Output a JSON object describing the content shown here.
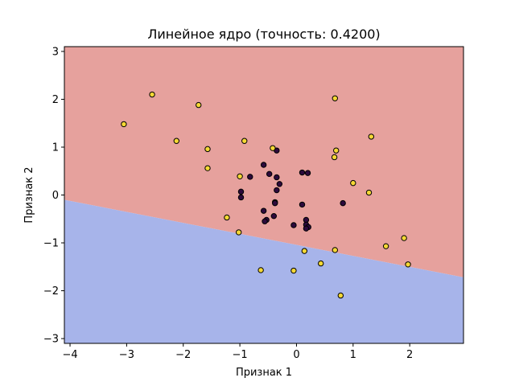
{
  "chart_data": {
    "type": "scatter",
    "title": "Линейное ядро (точность: 0.4200)",
    "xlabel": "Признак 1",
    "ylabel": "Признак 2",
    "xlim": [
      -4.1,
      2.95
    ],
    "ylim": [
      -3.1,
      3.1
    ],
    "x_ticks": [
      -4,
      -3,
      -2,
      -1,
      0,
      1,
      2
    ],
    "y_ticks": [
      -3,
      -2,
      -1,
      0,
      1,
      2,
      3
    ],
    "x_tick_labels": [
      "−4",
      "−3",
      "−2",
      "−1",
      "0",
      "1",
      "2"
    ],
    "y_tick_labels": [
      "−3",
      "−2",
      "−1",
      "0",
      "1",
      "2",
      "3"
    ],
    "grid": false,
    "decision_boundary": {
      "type": "line",
      "x": [
        -4.1,
        2.95
      ],
      "y": [
        -0.1,
        -1.72
      ],
      "region_above_color": "#e6a19d",
      "region_below_color": "#a7b4ea"
    },
    "classes": [
      {
        "color": "#2d0a3c",
        "points": [
          [
            -0.58,
            0.63
          ],
          [
            -0.48,
            0.44
          ],
          [
            -0.82,
            0.38
          ],
          [
            -0.35,
            0.93
          ],
          [
            -0.35,
            0.37
          ],
          [
            -0.3,
            0.23
          ],
          [
            -0.35,
            0.1
          ],
          [
            -0.98,
            0.07
          ],
          [
            -0.98,
            -0.05
          ],
          [
            -0.38,
            -0.15
          ],
          [
            -0.38,
            -0.17
          ],
          [
            -0.58,
            -0.33
          ],
          [
            -0.4,
            -0.44
          ],
          [
            -0.53,
            -0.52
          ],
          [
            -0.56,
            -0.55
          ],
          [
            -0.05,
            -0.63
          ],
          [
            0.1,
            0.47
          ],
          [
            0.2,
            0.46
          ],
          [
            0.1,
            -0.2
          ],
          [
            0.17,
            -0.52
          ],
          [
            0.17,
            -0.62
          ],
          [
            0.21,
            -0.67
          ],
          [
            0.17,
            -0.7
          ],
          [
            0.82,
            -0.17
          ]
        ]
      },
      {
        "color": "#f5d835",
        "points": [
          [
            -2.55,
            2.1
          ],
          [
            -1.73,
            1.88
          ],
          [
            -3.05,
            1.48
          ],
          [
            -2.12,
            1.13
          ],
          [
            -1.57,
            0.96
          ],
          [
            -1.57,
            0.56
          ],
          [
            -0.92,
            1.13
          ],
          [
            -0.42,
            0.98
          ],
          [
            -1.0,
            0.39
          ],
          [
            0.68,
            2.02
          ],
          [
            1.32,
            1.22
          ],
          [
            0.7,
            0.93
          ],
          [
            0.67,
            0.79
          ],
          [
            1.0,
            0.25
          ],
          [
            1.28,
            0.05
          ],
          [
            -1.23,
            -0.47
          ],
          [
            -1.02,
            -0.78
          ],
          [
            0.14,
            -1.17
          ],
          [
            0.68,
            -1.15
          ],
          [
            0.43,
            -1.43
          ],
          [
            -0.63,
            -1.57
          ],
          [
            -0.05,
            -1.58
          ],
          [
            0.78,
            -2.1
          ],
          [
            1.58,
            -1.07
          ],
          [
            1.9,
            -0.9
          ],
          [
            1.97,
            -1.45
          ]
        ]
      }
    ]
  }
}
